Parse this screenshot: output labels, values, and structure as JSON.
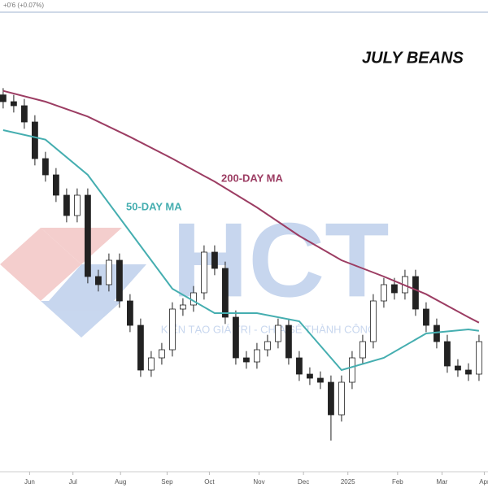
{
  "chart_data": {
    "type": "candlestick",
    "title": "JULY BEANS",
    "change_label": "+0'6 (+0.07%)",
    "watermark": "HCT",
    "watermark_tagline": "KIẾN TẠO GIÁ TRỊ - CHIA SẺ THÀNH CÔNG",
    "xlim": [
      -0.3,
      45.85
    ],
    "xticks": [
      {
        "value": 2.5,
        "label": "Jun"
      },
      {
        "value": 6.6,
        "label": "Jul"
      },
      {
        "value": 11.1,
        "label": "Aug"
      },
      {
        "value": 15.5,
        "label": "Sep"
      },
      {
        "value": 19.5,
        "label": "Oct"
      },
      {
        "value": 24.2,
        "label": "Nov"
      },
      {
        "value": 28.4,
        "label": "Dec"
      },
      {
        "value": 32.6,
        "label": "2025"
      },
      {
        "value": 37.3,
        "label": "Feb"
      },
      {
        "value": 41.5,
        "label": "Mar"
      },
      {
        "value": 45.5,
        "label": "Apr"
      }
    ],
    "ylim": [
      952,
      1300
    ],
    "ohlc": [
      [
        1230,
        1235,
        1220,
        1225
      ],
      [
        1225,
        1230,
        1217,
        1222
      ],
      [
        1222,
        1227,
        1205,
        1210
      ],
      [
        1210,
        1215,
        1178,
        1183
      ],
      [
        1183,
        1188,
        1166,
        1171
      ],
      [
        1171,
        1176,
        1151,
        1156
      ],
      [
        1156,
        1161,
        1136,
        1141
      ],
      [
        1141,
        1161,
        1136,
        1156
      ],
      [
        1156,
        1161,
        1091,
        1096
      ],
      [
        1096,
        1101,
        1085,
        1090
      ],
      [
        1090,
        1113,
        1085,
        1108
      ],
      [
        1108,
        1113,
        1073,
        1078
      ],
      [
        1078,
        1083,
        1055,
        1060
      ],
      [
        1060,
        1065,
        1022,
        1027
      ],
      [
        1027,
        1041,
        1022,
        1036
      ],
      [
        1036,
        1047,
        1031,
        1042
      ],
      [
        1042,
        1077,
        1037,
        1072
      ],
      [
        1072,
        1080,
        1067,
        1075
      ],
      [
        1075,
        1089,
        1070,
        1084
      ],
      [
        1084,
        1119,
        1079,
        1114
      ],
      [
        1114,
        1119,
        1097,
        1102
      ],
      [
        1102,
        1107,
        1061,
        1066
      ],
      [
        1066,
        1071,
        1031,
        1036
      ],
      [
        1036,
        1041,
        1028,
        1033
      ],
      [
        1033,
        1047,
        1028,
        1042
      ],
      [
        1042,
        1053,
        1037,
        1048
      ],
      [
        1048,
        1065,
        1043,
        1060
      ],
      [
        1060,
        1065,
        1031,
        1036
      ],
      [
        1036,
        1041,
        1019,
        1024
      ],
      [
        1024,
        1029,
        1016,
        1021
      ],
      [
        1021,
        1026,
        1013,
        1018
      ],
      [
        1018,
        1023,
        975,
        994
      ],
      [
        994,
        1023,
        989,
        1018
      ],
      [
        1018,
        1041,
        1013,
        1036
      ],
      [
        1036,
        1053,
        1031,
        1048
      ],
      [
        1048,
        1083,
        1043,
        1078
      ],
      [
        1078,
        1095,
        1073,
        1090
      ],
      [
        1090,
        1095,
        1079,
        1084
      ],
      [
        1084,
        1101,
        1079,
        1096
      ],
      [
        1096,
        1101,
        1067,
        1072
      ],
      [
        1072,
        1077,
        1055,
        1060
      ],
      [
        1060,
        1065,
        1043,
        1048
      ],
      [
        1048,
        1053,
        1025,
        1030
      ],
      [
        1030,
        1035,
        1022,
        1027
      ],
      [
        1027,
        1032,
        1019,
        1024
      ],
      [
        1024,
        1053,
        1019,
        1048
      ]
    ],
    "up_color": "#ffffff",
    "down_color": "#222222",
    "series": [
      {
        "name": "200-DAY MA",
        "color": "#9c3d63",
        "x": [
          0,
          4,
          8,
          12,
          16,
          20,
          24,
          28,
          32,
          36,
          40,
          44,
          45
        ],
        "values": [
          1233,
          1225,
          1214,
          1199,
          1183,
          1166,
          1147,
          1126,
          1108,
          1096,
          1083,
          1066,
          1062
        ]
      },
      {
        "name": "50-DAY MA",
        "color": "#45aeb0",
        "x": [
          0,
          4,
          8,
          12,
          16,
          20,
          24,
          28,
          32,
          36,
          40,
          44,
          45
        ],
        "values": [
          1204,
          1197,
          1171,
          1129,
          1087,
          1069,
          1069,
          1063,
          1027,
          1036,
          1054,
          1057,
          1056
        ]
      }
    ]
  }
}
